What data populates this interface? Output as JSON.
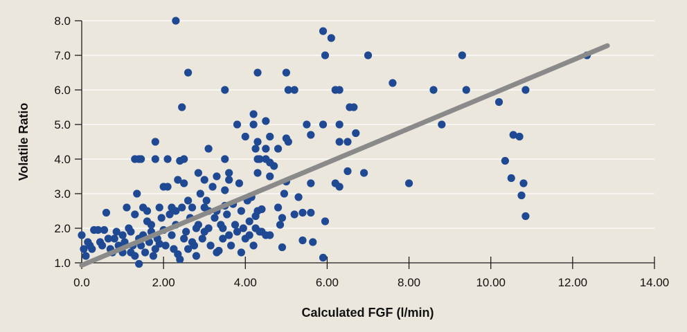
{
  "colors": {
    "background": "#ece7dc",
    "gridline": "#ffffff",
    "axis": "#1a1a1a",
    "point": "#1f4a93",
    "trendline": "#8a8a8a"
  },
  "chart_data": {
    "type": "scatter",
    "xlabel": "Calculated FGF (l/min)",
    "ylabel": "Volatile Ratio",
    "xlim": [
      0,
      14
    ],
    "ylim": [
      1,
      8
    ],
    "x_tick_values": [
      0,
      2,
      4,
      6,
      8,
      10,
      12,
      14
    ],
    "x_tick_labels": [
      "0.0",
      "2.00",
      "4.00",
      "6.00",
      "8.00",
      "10.00",
      "12.00",
      "14.00"
    ],
    "y_tick_values": [
      1,
      2,
      3,
      4,
      5,
      6,
      7,
      8
    ],
    "y_tick_labels": [
      "1.0",
      "2.0",
      "3.0",
      "4.0",
      "5.0",
      "6.0",
      "7.0",
      "8.0"
    ],
    "grid": "horizontal",
    "trendline": {
      "x": [
        0.0,
        12.85
      ],
      "y": [
        0.93,
        7.28
      ]
    },
    "points": [
      [
        2.3,
        8.0
      ],
      [
        5.9,
        7.7
      ],
      [
        6.1,
        7.5
      ],
      [
        5.95,
        7.0
      ],
      [
        7.0,
        7.0
      ],
      [
        9.3,
        7.0
      ],
      [
        12.35,
        7.0
      ],
      [
        2.6,
        6.5
      ],
      [
        4.3,
        6.5
      ],
      [
        5.0,
        6.5
      ],
      [
        3.5,
        6.0
      ],
      [
        5.05,
        6.0
      ],
      [
        5.2,
        6.0
      ],
      [
        6.2,
        6.0
      ],
      [
        6.3,
        6.0
      ],
      [
        8.6,
        6.0
      ],
      [
        9.4,
        6.0
      ],
      [
        10.85,
        6.0
      ],
      [
        7.6,
        6.2
      ],
      [
        10.2,
        5.65
      ],
      [
        6.55,
        5.5
      ],
      [
        6.65,
        5.5
      ],
      [
        2.45,
        5.5
      ],
      [
        4.2,
        5.3
      ],
      [
        4.5,
        5.1
      ],
      [
        3.8,
        5.0
      ],
      [
        4.2,
        5.0
      ],
      [
        5.5,
        5.0
      ],
      [
        5.9,
        5.0
      ],
      [
        6.3,
        5.0
      ],
      [
        8.8,
        5.0
      ],
      [
        6.7,
        4.75
      ],
      [
        5.6,
        4.7
      ],
      [
        4.0,
        4.65
      ],
      [
        10.55,
        4.7
      ],
      [
        10.7,
        4.65
      ],
      [
        4.6,
        4.65
      ],
      [
        5.0,
        4.6
      ],
      [
        1.8,
        4.5
      ],
      [
        4.3,
        4.5
      ],
      [
        5.05,
        4.5
      ],
      [
        6.3,
        4.5
      ],
      [
        6.5,
        4.5
      ],
      [
        3.1,
        4.3
      ],
      [
        4.25,
        4.3
      ],
      [
        4.5,
        4.3
      ],
      [
        4.8,
        4.3
      ],
      [
        1.3,
        4.0
      ],
      [
        1.4,
        4.0
      ],
      [
        1.45,
        4.0
      ],
      [
        1.8,
        4.0
      ],
      [
        2.1,
        4.0
      ],
      [
        2.4,
        3.95
      ],
      [
        2.5,
        4.0
      ],
      [
        3.5,
        4.0
      ],
      [
        4.3,
        4.0
      ],
      [
        4.35,
        4.0
      ],
      [
        4.5,
        4.0
      ],
      [
        4.6,
        3.9
      ],
      [
        4.7,
        3.8
      ],
      [
        10.35,
        3.95
      ],
      [
        2.85,
        3.6
      ],
      [
        3.0,
        3.4
      ],
      [
        3.3,
        3.5
      ],
      [
        3.6,
        3.6
      ],
      [
        4.3,
        3.6
      ],
      [
        3.6,
        3.4
      ],
      [
        6.5,
        3.65
      ],
      [
        6.9,
        3.6
      ],
      [
        4.6,
        3.5
      ],
      [
        5.6,
        3.3
      ],
      [
        6.2,
        3.3
      ],
      [
        6.3,
        3.2
      ],
      [
        10.5,
        3.45
      ],
      [
        8.0,
        3.3
      ],
      [
        10.8,
        3.3
      ],
      [
        5.0,
        3.35
      ],
      [
        4.95,
        3.0
      ],
      [
        5.3,
        2.9
      ],
      [
        10.75,
        2.95
      ],
      [
        10.85,
        2.35
      ],
      [
        5.95,
        2.2
      ],
      [
        4.9,
        2.3
      ],
      [
        5.2,
        2.4
      ],
      [
        5.4,
        2.45
      ],
      [
        5.6,
        2.45
      ],
      [
        4.8,
        2.6
      ],
      [
        4.85,
        2.1
      ],
      [
        4.9,
        1.45
      ],
      [
        5.4,
        1.65
      ],
      [
        5.65,
        1.6
      ],
      [
        5.9,
        1.15
      ],
      [
        0.0,
        1.8
      ],
      [
        0.1,
        1.2
      ],
      [
        0.2,
        1.5
      ],
      [
        0.3,
        1.95
      ],
      [
        0.4,
        1.95
      ],
      [
        0.5,
        1.5
      ],
      [
        0.55,
        1.95
      ],
      [
        0.6,
        2.45
      ],
      [
        0.7,
        1.4
      ],
      [
        0.8,
        1.7
      ],
      [
        0.9,
        1.5
      ],
      [
        1.0,
        1.8
      ],
      [
        1.1,
        2.6
      ],
      [
        1.2,
        1.3
      ],
      [
        1.3,
        1.2
      ],
      [
        1.35,
        3.0
      ],
      [
        1.4,
        0.97
      ],
      [
        1.5,
        2.6
      ],
      [
        1.6,
        2.2
      ],
      [
        1.7,
        1.9
      ],
      [
        1.8,
        1.4
      ],
      [
        1.9,
        2.6
      ],
      [
        2.0,
        3.2
      ],
      [
        2.1,
        3.2
      ],
      [
        2.2,
        1.8
      ],
      [
        2.3,
        2.1
      ],
      [
        2.35,
        3.4
      ],
      [
        2.4,
        1.1
      ],
      [
        2.45,
        2.6
      ],
      [
        2.5,
        3.3
      ],
      [
        2.6,
        2.8
      ],
      [
        2.7,
        1.6
      ],
      [
        2.8,
        2.0
      ],
      [
        2.9,
        3.0
      ],
      [
        3.0,
        1.9
      ],
      [
        3.1,
        2.5
      ],
      [
        3.2,
        3.2
      ],
      [
        3.3,
        1.3
      ],
      [
        3.4,
        2.1
      ],
      [
        3.5,
        3.1
      ],
      [
        3.6,
        1.8
      ],
      [
        3.7,
        2.7
      ],
      [
        3.8,
        1.9
      ],
      [
        3.9,
        2.5
      ],
      [
        4.0,
        1.7
      ],
      [
        4.1,
        2.2
      ],
      [
        4.2,
        1.5
      ],
      [
        4.3,
        2.5
      ],
      [
        4.4,
        1.9
      ],
      [
        4.5,
        1.8
      ],
      [
        4.6,
        1.8
      ],
      [
        1.0,
        1.3
      ],
      [
        1.05,
        1.6
      ],
      [
        1.15,
        2.0
      ],
      [
        1.25,
        1.5
      ],
      [
        1.5,
        1.8
      ],
      [
        1.55,
        1.3
      ],
      [
        1.65,
        1.6
      ],
      [
        1.75,
        1.2
      ],
      [
        1.85,
        1.7
      ],
      [
        1.95,
        2.3
      ],
      [
        2.05,
        1.5
      ],
      [
        2.15,
        2.4
      ],
      [
        2.25,
        1.4
      ],
      [
        2.55,
        1.9
      ],
      [
        2.65,
        2.3
      ],
      [
        2.75,
        1.5
      ],
      [
        2.85,
        2.1
      ],
      [
        2.95,
        1.7
      ],
      [
        3.05,
        2.8
      ],
      [
        3.15,
        1.5
      ],
      [
        3.25,
        2.3
      ],
      [
        3.45,
        1.7
      ],
      [
        3.55,
        2.4
      ],
      [
        3.75,
        2.1
      ],
      [
        3.95,
        2.0
      ],
      [
        4.15,
        2.9
      ],
      [
        4.25,
        2.0
      ],
      [
        4.35,
        1.9
      ],
      [
        0.05,
        1.4
      ],
      [
        0.15,
        1.6
      ],
      [
        0.25,
        1.4
      ],
      [
        0.45,
        1.6
      ],
      [
        0.65,
        1.7
      ],
      [
        0.75,
        1.3
      ],
      [
        0.85,
        1.9
      ],
      [
        0.95,
        1.4
      ],
      [
        1.45,
        1.5
      ],
      [
        1.6,
        2.5
      ],
      [
        1.9,
        1.55
      ],
      [
        2.2,
        2.6
      ],
      [
        2.35,
        1.25
      ],
      [
        2.5,
        1.7
      ],
      [
        2.7,
        2.6
      ],
      [
        3.0,
        2.6
      ],
      [
        3.35,
        1.35
      ],
      [
        3.5,
        2.65
      ],
      [
        3.85,
        3.3
      ],
      [
        4.05,
        2.8
      ],
      [
        4.4,
        2.55
      ],
      [
        1.2,
        1.9
      ],
      [
        1.3,
        2.4
      ],
      [
        1.4,
        1.7
      ],
      [
        1.7,
        2.1
      ],
      [
        2.0,
        1.95
      ],
      [
        2.3,
        2.5
      ],
      [
        2.6,
        1.4
      ],
      [
        2.8,
        1.2
      ],
      [
        3.1,
        2.0
      ],
      [
        3.3,
        2.5
      ],
      [
        3.45,
        2.0
      ],
      [
        3.65,
        1.5
      ],
      [
        3.9,
        1.3
      ],
      [
        4.1,
        1.8
      ],
      [
        4.25,
        2.35
      ]
    ]
  }
}
